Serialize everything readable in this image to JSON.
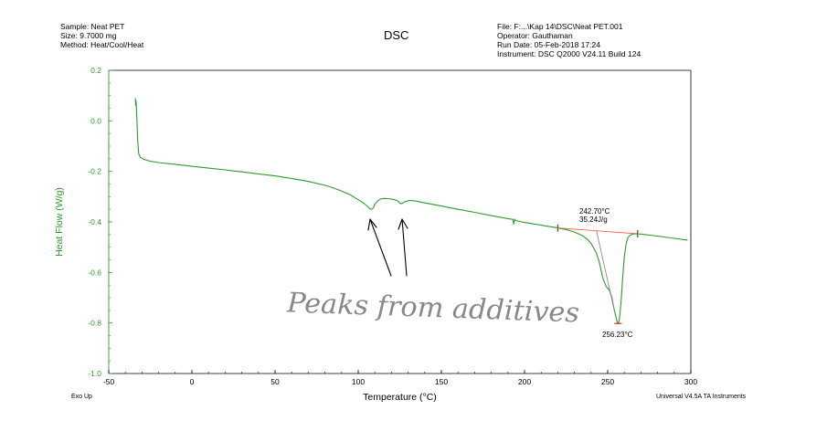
{
  "header": {
    "sample": "Sample: Neat PET",
    "size": "Size:  9.7000 mg",
    "method": "Method: Heat/Cool/Heat",
    "file": "File: F:...\\Kap 14\\DSC\\Neat PET.001",
    "operator": "Operator: Gauthaman",
    "run_date": "Run Date: 05-Feb-2018 17:24",
    "instrument": "Instrument: DSC Q2000 V24.11 Build 124"
  },
  "footer": {
    "exo_up": "Exo Up",
    "software": "Universal V4.5A TA Instruments"
  },
  "colors": {
    "curve": "#2e9a2e",
    "ylabel": "#2e9a2e",
    "baseline": "#ff6060",
    "marker": "#e02020",
    "tangent": "#808080",
    "handwriting": "#888888"
  },
  "chart_data": {
    "type": "line",
    "title": "DSC",
    "xlabel": "Temperature (°C)",
    "ylabel": "Heat Flow (W/g)",
    "xlim": [
      -50,
      300
    ],
    "ylim": [
      -1.0,
      0.2
    ],
    "xticks": [
      -50,
      0,
      50,
      100,
      150,
      200,
      250,
      300
    ],
    "yticks": [
      0.2,
      0.0,
      -0.2,
      -0.4,
      -0.6,
      -0.8,
      -1.0
    ],
    "ytick_labels": [
      "0.2",
      "0.0",
      "-0.2",
      "-0.4",
      "-0.6",
      "-0.8",
      "-1.0"
    ],
    "grid": false,
    "series": [
      {
        "name": "Neat PET",
        "x": [
          -34.0,
          -33.8,
          -33.6,
          -33.4,
          -33.0,
          -32.6,
          -32.0,
          -31.0,
          -29.0,
          -25.0,
          -20,
          -10,
          0,
          10,
          20,
          30,
          40,
          50,
          60,
          70,
          80,
          85,
          90,
          95,
          100,
          103,
          105,
          107,
          108,
          109,
          110,
          112,
          114,
          116,
          118,
          120,
          122,
          124,
          125,
          126,
          127,
          128,
          130,
          132,
          135,
          140,
          150,
          160,
          170,
          180,
          190,
          193,
          193.5,
          194,
          194.5,
          195,
          200,
          210,
          220,
          225,
          230,
          235,
          238,
          240,
          243,
          245,
          247,
          249,
          251,
          252.5,
          254,
          255.5,
          256.2,
          257,
          258,
          259,
          260,
          261,
          262,
          263,
          265,
          267,
          270,
          280,
          290,
          298
        ],
        "y": [
          0.09,
          0.06,
          0.08,
          0.06,
          0.0,
          -0.08,
          -0.13,
          -0.145,
          -0.152,
          -0.16,
          -0.165,
          -0.172,
          -0.18,
          -0.187,
          -0.194,
          -0.202,
          -0.21,
          -0.218,
          -0.228,
          -0.24,
          -0.255,
          -0.265,
          -0.278,
          -0.292,
          -0.312,
          -0.325,
          -0.335,
          -0.348,
          -0.35,
          -0.345,
          -0.33,
          -0.315,
          -0.308,
          -0.307,
          -0.308,
          -0.31,
          -0.312,
          -0.318,
          -0.326,
          -0.328,
          -0.325,
          -0.32,
          -0.316,
          -0.315,
          -0.318,
          -0.325,
          -0.337,
          -0.35,
          -0.362,
          -0.375,
          -0.387,
          -0.39,
          -0.41,
          -0.39,
          -0.393,
          -0.395,
          -0.402,
          -0.413,
          -0.424,
          -0.43,
          -0.44,
          -0.455,
          -0.47,
          -0.485,
          -0.52,
          -0.56,
          -0.62,
          -0.655,
          -0.67,
          -0.7,
          -0.75,
          -0.79,
          -0.802,
          -0.79,
          -0.72,
          -0.62,
          -0.54,
          -0.49,
          -0.465,
          -0.455,
          -0.448,
          -0.447,
          -0.448,
          -0.456,
          -0.465,
          -0.472
        ]
      }
    ],
    "annotations": [
      {
        "text": "242.70°C",
        "x": 242.7,
        "y": -0.435
      },
      {
        "text": "35.24J/g",
        "x": 242.7,
        "y": -0.435
      },
      {
        "text": "256.23°C",
        "x": 256.23,
        "y": -0.802
      }
    ],
    "integration_baseline": {
      "x": [
        220,
        268
      ],
      "y": [
        -0.424,
        -0.447
      ]
    },
    "handwritten_note": "Peaks from additives"
  }
}
